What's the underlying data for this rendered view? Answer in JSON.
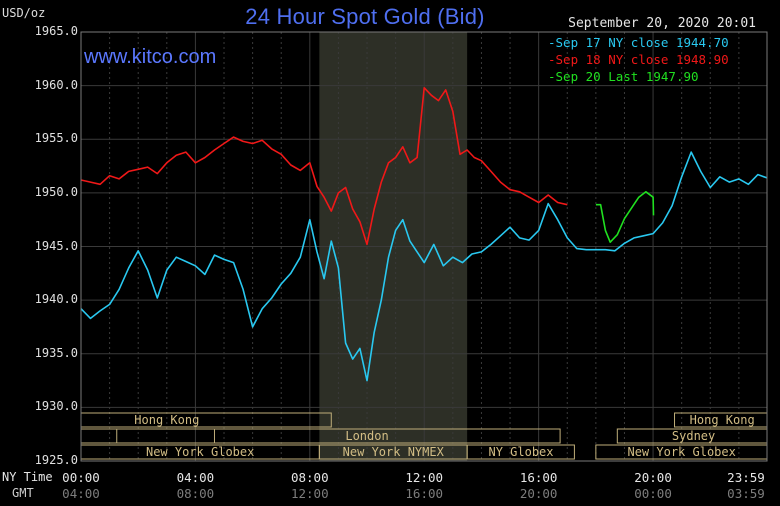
{
  "header": {
    "title": "24 Hour Spot Gold (Bid)",
    "site": "www.kitco.com",
    "unit": "USD/oz",
    "timestamp": "September 20, 2020 20:01"
  },
  "axis": {
    "y_ticks": [
      "1965.0",
      "1960.0",
      "1955.0",
      "1950.0",
      "1945.0",
      "1940.0",
      "1935.0",
      "1930.0",
      "1925.0"
    ],
    "ny_label": "NY Time",
    "gmt_label": "GMT",
    "ny_ticks": [
      "00:00",
      "04:00",
      "08:00",
      "12:00",
      "16:00",
      "20:00",
      "23:59"
    ],
    "gmt_ticks": [
      "04:00",
      "08:00",
      "12:00",
      "16:00",
      "20:00",
      "00:00",
      "03:59"
    ]
  },
  "sessions": {
    "hong_kong": "Hong Kong",
    "london": "London",
    "ny_globex": "New York Globex",
    "ny_nymex": "New York NYMEX",
    "ny_globex_short": "NY Globex",
    "sydney": "Sydney"
  },
  "colors": {
    "sep17": "#29c8f0",
    "sep18": "#f01818",
    "sep20": "#20e020",
    "session": "#bfae7a",
    "grid": "#3a3a3a"
  },
  "chart_data": {
    "type": "line",
    "title": "24 Hour Spot Gold (Bid)",
    "ylabel": "USD/oz",
    "ylim": [
      1925,
      1965
    ],
    "xlim": [
      "00:00",
      "23:59"
    ],
    "grid": true,
    "legend_position": "top-right",
    "series": [
      {
        "name": "Sep 17 NY close 1944.70",
        "color": "#29c8f0",
        "points": [
          [
            "00:00",
            1939.2
          ],
          [
            "00:20",
            1938.3
          ],
          [
            "00:40",
            1939.0
          ],
          [
            "01:00",
            1939.6
          ],
          [
            "01:20",
            1941.0
          ],
          [
            "01:40",
            1943.0
          ],
          [
            "02:00",
            1944.6
          ],
          [
            "02:20",
            1942.8
          ],
          [
            "02:40",
            1940.2
          ],
          [
            "03:00",
            1942.8
          ],
          [
            "03:20",
            1944.0
          ],
          [
            "03:40",
            1943.6
          ],
          [
            "04:00",
            1943.2
          ],
          [
            "04:20",
            1942.4
          ],
          [
            "04:40",
            1944.2
          ],
          [
            "05:00",
            1943.8
          ],
          [
            "05:20",
            1943.5
          ],
          [
            "05:40",
            1941.0
          ],
          [
            "06:00",
            1937.5
          ],
          [
            "06:20",
            1939.2
          ],
          [
            "06:40",
            1940.2
          ],
          [
            "07:00",
            1941.5
          ],
          [
            "07:20",
            1942.5
          ],
          [
            "07:40",
            1944.0
          ],
          [
            "08:00",
            1947.5
          ],
          [
            "08:15",
            1944.5
          ],
          [
            "08:30",
            1942.0
          ],
          [
            "08:45",
            1945.5
          ],
          [
            "09:00",
            1943.0
          ],
          [
            "09:15",
            1936.0
          ],
          [
            "09:30",
            1934.5
          ],
          [
            "09:45",
            1935.5
          ],
          [
            "10:00",
            1932.5
          ],
          [
            "10:15",
            1937.0
          ],
          [
            "10:30",
            1940.0
          ],
          [
            "10:45",
            1944.0
          ],
          [
            "11:00",
            1946.5
          ],
          [
            "11:15",
            1947.5
          ],
          [
            "11:30",
            1945.5
          ],
          [
            "11:45",
            1944.5
          ],
          [
            "12:00",
            1943.5
          ],
          [
            "12:20",
            1945.2
          ],
          [
            "12:40",
            1943.2
          ],
          [
            "13:00",
            1944.0
          ],
          [
            "13:20",
            1943.5
          ],
          [
            "13:40",
            1944.3
          ],
          [
            "14:00",
            1944.5
          ],
          [
            "14:20",
            1945.2
          ],
          [
            "14:40",
            1946.0
          ],
          [
            "15:00",
            1946.8
          ],
          [
            "15:20",
            1945.8
          ],
          [
            "15:40",
            1945.6
          ],
          [
            "16:00",
            1946.5
          ],
          [
            "16:20",
            1949.0
          ],
          [
            "16:40",
            1947.5
          ],
          [
            "17:00",
            1945.8
          ],
          [
            "17:20",
            1944.8
          ],
          [
            "17:40",
            1944.7
          ],
          [
            "18:00",
            1944.7
          ],
          [
            "18:20",
            1944.7
          ],
          [
            "18:40",
            1944.6
          ],
          [
            "19:00",
            1945.3
          ],
          [
            "19:20",
            1945.8
          ],
          [
            "19:40",
            1946.0
          ],
          [
            "20:00",
            1946.2
          ],
          [
            "20:20",
            1947.2
          ],
          [
            "20:40",
            1948.8
          ],
          [
            "21:00",
            1951.5
          ],
          [
            "21:20",
            1953.8
          ],
          [
            "21:40",
            1952.0
          ],
          [
            "22:00",
            1950.5
          ],
          [
            "22:20",
            1951.5
          ],
          [
            "22:40",
            1951.0
          ],
          [
            "23:00",
            1951.3
          ],
          [
            "23:20",
            1950.8
          ],
          [
            "23:40",
            1951.7
          ],
          [
            "23:59",
            1951.4
          ]
        ]
      },
      {
        "name": "Sep 18 NY close 1948.90",
        "color": "#f01818",
        "points": [
          [
            "00:00",
            1951.2
          ],
          [
            "00:20",
            1951.0
          ],
          [
            "00:40",
            1950.8
          ],
          [
            "01:00",
            1951.6
          ],
          [
            "01:20",
            1951.3
          ],
          [
            "01:40",
            1952.0
          ],
          [
            "02:00",
            1952.2
          ],
          [
            "02:20",
            1952.4
          ],
          [
            "02:40",
            1951.8
          ],
          [
            "03:00",
            1952.8
          ],
          [
            "03:20",
            1953.5
          ],
          [
            "03:40",
            1953.8
          ],
          [
            "04:00",
            1952.8
          ],
          [
            "04:20",
            1953.3
          ],
          [
            "04:40",
            1954.0
          ],
          [
            "05:00",
            1954.6
          ],
          [
            "05:20",
            1955.2
          ],
          [
            "05:40",
            1954.8
          ],
          [
            "06:00",
            1954.6
          ],
          [
            "06:20",
            1954.9
          ],
          [
            "06:40",
            1954.1
          ],
          [
            "07:00",
            1953.6
          ],
          [
            "07:20",
            1952.6
          ],
          [
            "07:40",
            1952.1
          ],
          [
            "08:00",
            1952.8
          ],
          [
            "08:15",
            1950.6
          ],
          [
            "08:30",
            1949.6
          ],
          [
            "08:45",
            1948.3
          ],
          [
            "09:00",
            1950.0
          ],
          [
            "09:15",
            1950.5
          ],
          [
            "09:30",
            1948.5
          ],
          [
            "09:45",
            1947.3
          ],
          [
            "10:00",
            1945.2
          ],
          [
            "10:15",
            1948.5
          ],
          [
            "10:30",
            1951.0
          ],
          [
            "10:45",
            1952.8
          ],
          [
            "11:00",
            1953.3
          ],
          [
            "11:15",
            1954.3
          ],
          [
            "11:30",
            1952.8
          ],
          [
            "11:45",
            1953.3
          ],
          [
            "12:00",
            1959.8
          ],
          [
            "12:15",
            1959.1
          ],
          [
            "12:30",
            1958.6
          ],
          [
            "12:45",
            1959.6
          ],
          [
            "13:00",
            1957.6
          ],
          [
            "13:15",
            1953.6
          ],
          [
            "13:30",
            1954.0
          ],
          [
            "13:45",
            1953.3
          ],
          [
            "14:00",
            1953.0
          ],
          [
            "14:20",
            1952.0
          ],
          [
            "14:40",
            1951.0
          ],
          [
            "15:00",
            1950.3
          ],
          [
            "15:20",
            1950.1
          ],
          [
            "15:40",
            1949.6
          ],
          [
            "16:00",
            1949.1
          ],
          [
            "16:20",
            1949.8
          ],
          [
            "16:40",
            1949.1
          ],
          [
            "17:00",
            1948.9
          ]
        ]
      },
      {
        "name": "Sep 20 Last 1947.90",
        "color": "#20e020",
        "points": [
          [
            "18:00",
            1948.9
          ],
          [
            "18:10",
            1948.9
          ],
          [
            "18:20",
            1946.5
          ],
          [
            "18:30",
            1945.4
          ],
          [
            "18:45",
            1946.1
          ],
          [
            "19:00",
            1947.6
          ],
          [
            "19:15",
            1948.6
          ],
          [
            "19:30",
            1949.6
          ],
          [
            "19:45",
            1950.1
          ],
          [
            "20:00",
            1949.6
          ],
          [
            "20:01",
            1947.9
          ]
        ]
      }
    ]
  }
}
